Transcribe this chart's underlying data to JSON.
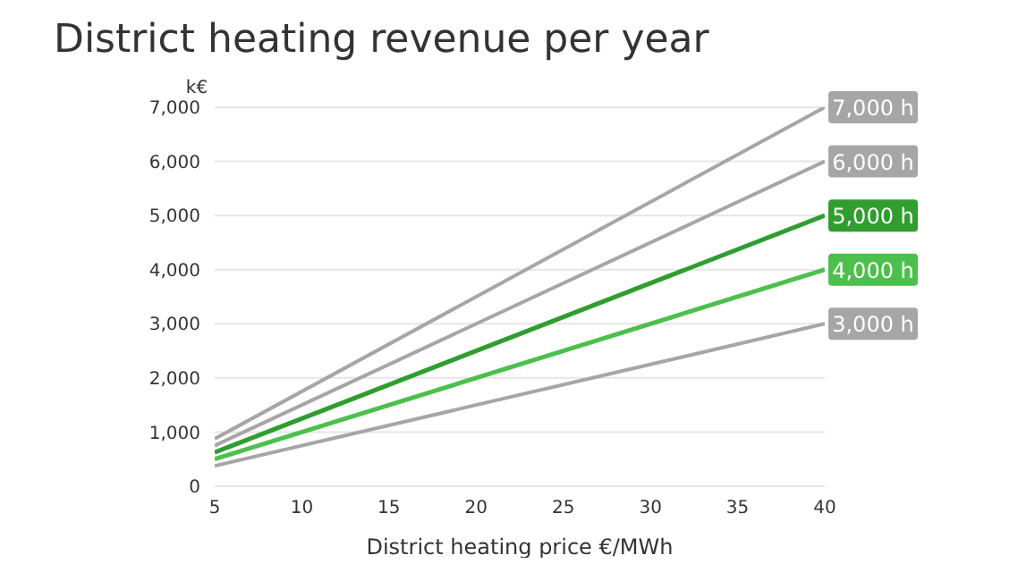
{
  "chart_data": {
    "type": "line",
    "title": "District heating revenue per year",
    "xlabel": "District heating price €/MWh",
    "ylabel": "k€",
    "x": [
      5,
      40
    ],
    "series": [
      {
        "name": "7,000 h",
        "color": "#a6a6a6",
        "values": [
          875,
          7000
        ]
      },
      {
        "name": "6,000 h",
        "color": "#a6a6a6",
        "values": [
          750,
          6000
        ]
      },
      {
        "name": "5,000 h",
        "color": "#2f9e2f",
        "values": [
          625,
          5000
        ]
      },
      {
        "name": "4,000 h",
        "color": "#4cc04c",
        "values": [
          500,
          4000
        ]
      },
      {
        "name": "3,000 h",
        "color": "#a6a6a6",
        "values": [
          375,
          3000
        ]
      }
    ],
    "xlim": [
      5,
      40
    ],
    "xticks": [
      5,
      10,
      15,
      20,
      25,
      30,
      35,
      40
    ],
    "ylim": [
      0,
      7000
    ],
    "yticks": [
      0,
      {
        "value": 1000,
        "label": "1,000"
      },
      {
        "value": 2000,
        "label": "2,000"
      },
      {
        "value": 3000,
        "label": "3,000"
      },
      {
        "value": 4000,
        "label": "4,000"
      },
      {
        "value": 5000,
        "label": "5,000"
      },
      {
        "value": 6000,
        "label": "6,000"
      },
      {
        "value": 7000,
        "label": "7,000"
      }
    ],
    "grid": "y",
    "legend": false,
    "marker": "none",
    "line_style": "solid"
  }
}
